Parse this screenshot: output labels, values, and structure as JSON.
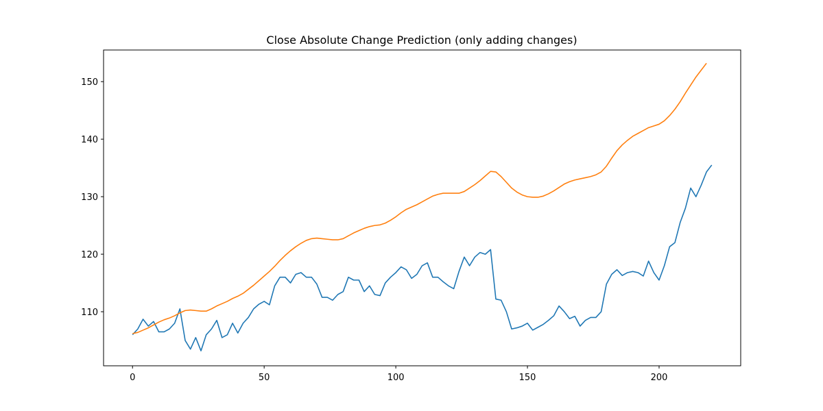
{
  "chart_data": {
    "type": "line",
    "title": "Close Absolute Change Prediction (only adding changes)",
    "x": [
      0,
      2,
      4,
      6,
      8,
      10,
      12,
      14,
      16,
      18,
      20,
      22,
      24,
      26,
      28,
      30,
      32,
      34,
      36,
      38,
      40,
      42,
      44,
      46,
      48,
      50,
      52,
      54,
      56,
      58,
      60,
      62,
      64,
      66,
      68,
      70,
      72,
      74,
      76,
      78,
      80,
      82,
      84,
      86,
      88,
      90,
      92,
      94,
      96,
      98,
      100,
      102,
      104,
      106,
      108,
      110,
      112,
      114,
      116,
      118,
      120,
      122,
      124,
      126,
      128,
      130,
      132,
      134,
      136,
      138,
      140,
      142,
      144,
      146,
      148,
      150,
      152,
      154,
      156,
      158,
      160,
      162,
      164,
      166,
      168,
      170,
      172,
      174,
      176,
      178,
      180,
      182,
      184,
      186,
      188,
      190,
      192,
      194,
      196,
      198,
      200,
      202,
      204,
      206,
      208,
      210,
      212,
      214,
      216,
      218,
      220
    ],
    "series": [
      {
        "color": "#1f77b4",
        "values": [
          106,
          107,
          108.7,
          107.5,
          108.3,
          106.5,
          106.5,
          107,
          108,
          110.5,
          105,
          103.5,
          105.5,
          103.2,
          106,
          107,
          108.5,
          105.5,
          106,
          108,
          106.3,
          108,
          109,
          110.5,
          111.3,
          111.8,
          111.2,
          114.5,
          116,
          116,
          115,
          116.5,
          116.8,
          116,
          116,
          114.8,
          112.5,
          112.5,
          112,
          113,
          113.5,
          116,
          115.5,
          115.5,
          113.5,
          114.5,
          113,
          112.8,
          115,
          116,
          116.8,
          117.8,
          117.3,
          115.8,
          116.5,
          118,
          118.5,
          116,
          116,
          115.2,
          114.5,
          114,
          117,
          119.5,
          118,
          119.5,
          120.3,
          120,
          120.8,
          112.2,
          112,
          110,
          107,
          107.2,
          107.5,
          108,
          106.8,
          107.3,
          107.8,
          108.5,
          109.3,
          111,
          110,
          108.8,
          109.2,
          107.5,
          108.5,
          109,
          109,
          110,
          114.8,
          116.5,
          117.3,
          116.3,
          116.8,
          117,
          116.8,
          116.2,
          118.8,
          116.8,
          115.5,
          118,
          121.3,
          122,
          125.5,
          128,
          131.5,
          130,
          132,
          134.3,
          135.5
        ]
      },
      {
        "color": "#ff7f0e",
        "values": [
          106.2,
          106.4,
          106.8,
          107.2,
          107.7,
          108.2,
          108.6,
          108.9,
          109.3,
          109.8,
          110.2,
          110.3,
          110.2,
          110.1,
          110.1,
          110.5,
          111,
          111.4,
          111.8,
          112.3,
          112.7,
          113.2,
          113.9,
          114.6,
          115.4,
          116.2,
          117,
          117.9,
          118.9,
          119.8,
          120.6,
          121.3,
          121.9,
          122.4,
          122.7,
          122.8,
          122.7,
          122.6,
          122.5,
          122.5,
          122.7,
          123.2,
          123.7,
          124.1,
          124.5,
          124.8,
          125,
          125.1,
          125.4,
          125.9,
          126.5,
          127.2,
          127.8,
          128.2,
          128.6,
          129.1,
          129.6,
          130.1,
          130.4,
          130.6,
          130.6,
          130.6,
          130.6,
          130.9,
          131.5,
          132.1,
          132.8,
          133.6,
          134.4,
          134.3,
          133.5,
          132.5,
          131.5,
          130.8,
          130.3,
          130,
          129.9,
          129.9,
          130.1,
          130.5,
          131,
          131.6,
          132.2,
          132.6,
          132.9,
          133.1,
          133.3,
          133.5,
          133.8,
          134.3,
          135.3,
          136.7,
          138,
          139,
          139.8,
          140.5,
          141,
          141.5,
          142,
          142.3,
          142.6,
          143.2,
          144.1,
          145.2,
          146.5,
          148,
          149.4,
          150.8,
          152,
          153.2,
          null
        ]
      }
    ],
    "xlim": [
      -11,
      231
    ],
    "ylim": [
      100.6,
      155.5
    ],
    "xticks": [
      0,
      50,
      100,
      150,
      200
    ],
    "yticks": [
      110,
      120,
      130,
      140,
      150
    ]
  }
}
